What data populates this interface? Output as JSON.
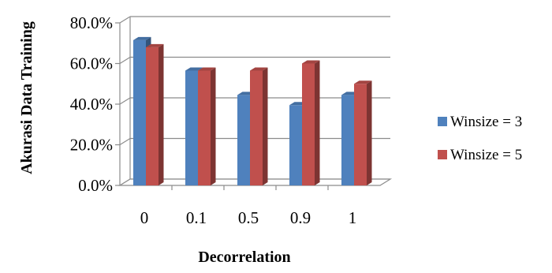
{
  "chart_data": {
    "type": "bar",
    "title": "",
    "xlabel": "Decorrelation",
    "ylabel": "Akurasi Data Training",
    "categories": [
      "0",
      "0.1",
      "0.5",
      "0.9",
      "1"
    ],
    "series": [
      {
        "name": "Winsize = 3",
        "values": [
          71.5,
          56.5,
          44.5,
          39.5,
          44.5
        ],
        "color": "#4F81BD"
      },
      {
        "name": "Winsize = 5",
        "values": [
          68.0,
          56.5,
          56.5,
          60.0,
          50.0
        ],
        "color": "#C0504D"
      }
    ],
    "ylim": [
      0,
      80
    ],
    "yticks": [
      "0.0%",
      "20.0%",
      "40.0%",
      "60.0%",
      "80.0%"
    ],
    "grid": true,
    "legend": "right",
    "style": "3d-clustered-column"
  }
}
